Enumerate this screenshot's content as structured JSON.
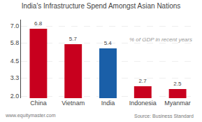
{
  "chart_data": {
    "type": "bar",
    "title": "India's Infrastructure Spend Amongst Asian Nations",
    "categories": [
      "China",
      "Vietnam",
      "India",
      "Indonesia",
      "Myanmar"
    ],
    "values": [
      6.8,
      5.7,
      5.4,
      2.7,
      2.5
    ],
    "colors": [
      "#c8001e",
      "#c8001e",
      "#1a5fa8",
      "#c8001e",
      "#c8001e"
    ],
    "ylim": [
      1.85,
      7.45
    ],
    "yticks": [
      {
        "value": 2.0,
        "label": "2.0"
      },
      3.3,
      4.5,
      5.8,
      {
        "value": 7.0,
        "label": "7.0"
      }
    ],
    "grid": true,
    "data_labels": true,
    "annotations": [
      "% of GDP in recent years",
      "www.equitymaster.com",
      "Source: Business Standard"
    ]
  }
}
